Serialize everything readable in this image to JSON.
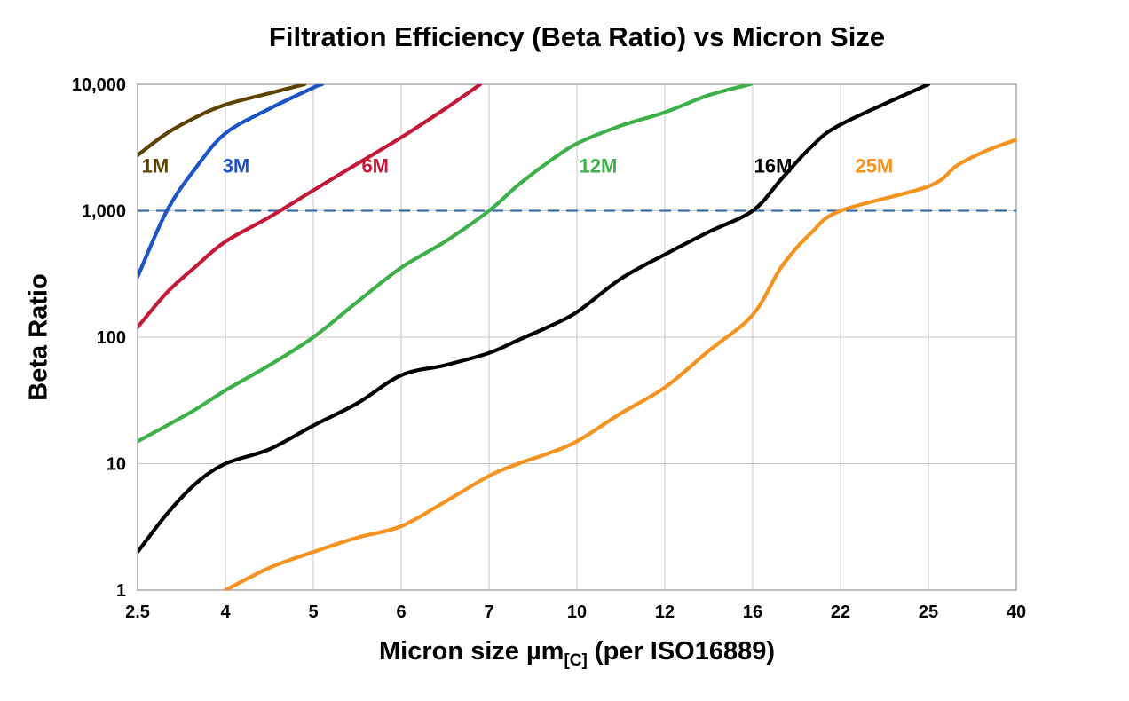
{
  "chart_data": {
    "type": "line",
    "title": "Filtration Efficiency (Beta Ratio) vs Micron Size",
    "ylabel": "Beta Ratio",
    "xlabel": {
      "main": "Micron size µm",
      "subscript": "[C]",
      "tail": " (per ISO16889)"
    },
    "x_scale": "ordinal-ticks",
    "y_scale": "log",
    "ylim": [
      1,
      10000
    ],
    "x_ticks": [
      2.5,
      4,
      5,
      6,
      7,
      10,
      12,
      16,
      22,
      25,
      40
    ],
    "x_tick_labels": [
      "2.5",
      "4",
      "5",
      "6",
      "7",
      "10",
      "12",
      "16",
      "22",
      "25",
      "40"
    ],
    "y_ticks": [
      1,
      10,
      100,
      1000,
      10000
    ],
    "y_tick_labels": [
      "1",
      "10",
      "100",
      "1,000",
      "10,000"
    ],
    "grid": true,
    "grid_color": "#c6c6c6",
    "border_color": "#9a9a9a",
    "reference_line": {
      "y": 1000,
      "color": "#3a6fae",
      "style": "dashed"
    },
    "series": [
      {
        "name": "1M",
        "color": "#5e4300",
        "label": {
          "x": 2.57,
          "y": 2000
        },
        "points": [
          [
            2.5,
            2750
          ],
          [
            3,
            4100
          ],
          [
            3.5,
            5500
          ],
          [
            4,
            6900
          ],
          [
            4.5,
            8500
          ],
          [
            4.9,
            10000
          ]
        ]
      },
      {
        "name": "3M",
        "color": "#1d53c4",
        "label": {
          "x": 3.95,
          "y": 2000
        },
        "points": [
          [
            2.5,
            300
          ],
          [
            3,
            1000
          ],
          [
            3.5,
            2200
          ],
          [
            4,
            4100
          ],
          [
            4.5,
            6400
          ],
          [
            5,
            9400
          ],
          [
            5.1,
            10000
          ]
        ]
      },
      {
        "name": "6M",
        "color": "#c41837",
        "label": {
          "x": 5.55,
          "y": 2000
        },
        "points": [
          [
            2.5,
            120
          ],
          [
            3,
            225
          ],
          [
            3.5,
            365
          ],
          [
            4,
            570
          ],
          [
            4.5,
            890
          ],
          [
            5,
            1450
          ],
          [
            5.5,
            2350
          ],
          [
            6,
            3800
          ],
          [
            6.5,
            6400
          ],
          [
            6.9,
            10000
          ]
        ]
      },
      {
        "name": "12M",
        "color": "#3eb049",
        "label": {
          "x": 10.05,
          "y": 2000
        },
        "points": [
          [
            2.5,
            15
          ],
          [
            3,
            20
          ],
          [
            3.5,
            27
          ],
          [
            4,
            38
          ],
          [
            4.5,
            60
          ],
          [
            5,
            100
          ],
          [
            5.5,
            190
          ],
          [
            6,
            355
          ],
          [
            6.5,
            570
          ],
          [
            7,
            1000
          ],
          [
            8,
            1600
          ],
          [
            9,
            2400
          ],
          [
            10,
            3400
          ],
          [
            11,
            4700
          ],
          [
            12,
            6000
          ],
          [
            14,
            8200
          ],
          [
            15.9,
            10000
          ]
        ]
      },
      {
        "name": "16M",
        "color": "#000000",
        "label": {
          "x": 16.1,
          "y": 2000
        },
        "points": [
          [
            2.5,
            2
          ],
          [
            3,
            4
          ],
          [
            3.5,
            7
          ],
          [
            4,
            10
          ],
          [
            4.5,
            13
          ],
          [
            5,
            20
          ],
          [
            5.5,
            30
          ],
          [
            6,
            50
          ],
          [
            6.5,
            60
          ],
          [
            7,
            75
          ],
          [
            8,
            95
          ],
          [
            9,
            120
          ],
          [
            10,
            158
          ],
          [
            11,
            290
          ],
          [
            12,
            450
          ],
          [
            14,
            680
          ],
          [
            16,
            1000
          ],
          [
            18,
            1800
          ],
          [
            20,
            3200
          ],
          [
            22,
            4800
          ],
          [
            25,
            10000
          ]
        ]
      },
      {
        "name": "25M",
        "color": "#f6921e",
        "label": {
          "x": 22.5,
          "y": 2000
        },
        "points": [
          [
            4,
            1
          ],
          [
            4.5,
            1.5
          ],
          [
            5,
            2
          ],
          [
            5.5,
            2.6
          ],
          [
            6,
            3.2
          ],
          [
            6.5,
            5
          ],
          [
            7,
            8
          ],
          [
            8,
            10
          ],
          [
            9,
            12
          ],
          [
            10,
            15
          ],
          [
            11,
            25
          ],
          [
            12,
            40
          ],
          [
            14,
            78
          ],
          [
            16,
            150
          ],
          [
            18,
            365
          ],
          [
            20,
            670
          ],
          [
            22,
            1000
          ],
          [
            25,
            1560
          ],
          [
            30,
            2300
          ],
          [
            35,
            3000
          ],
          [
            40,
            3650
          ]
        ]
      }
    ]
  }
}
